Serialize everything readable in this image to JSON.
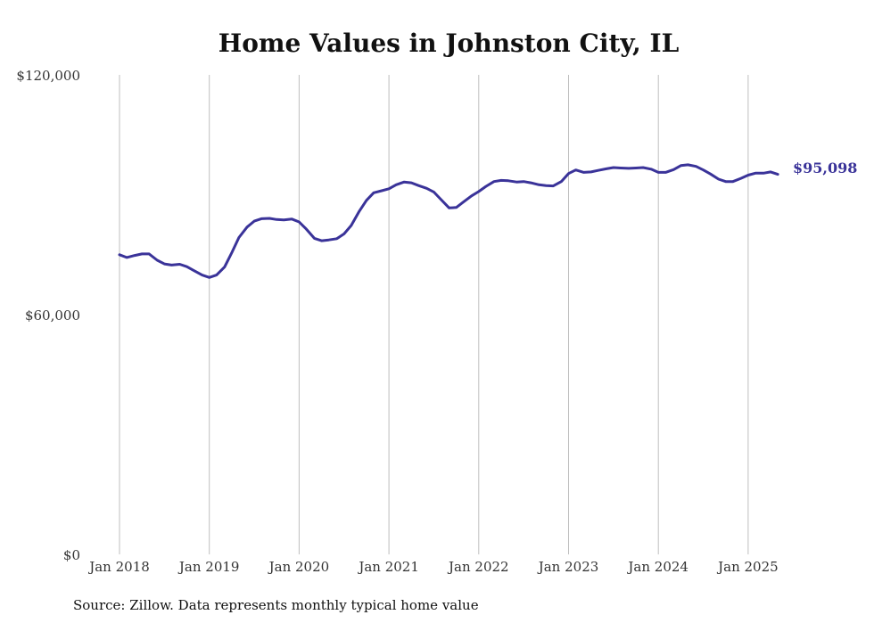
{
  "chart_data": {
    "type": "line",
    "title": "Home Values in Johnston City, IL",
    "xlabel": "",
    "ylabel": "",
    "ylim": [
      0,
      120000
    ],
    "y_ticks": [
      0,
      60000,
      120000
    ],
    "y_tick_labels": [
      "$0",
      "$60,000",
      "$120,000"
    ],
    "x_tick_labels": [
      "Jan 2018",
      "Jan 2019",
      "Jan 2020",
      "Jan 2021",
      "Jan 2022",
      "Jan 2023",
      "Jan 2024",
      "Jan 2025"
    ],
    "grid": "vertical",
    "end_label": "$95,098",
    "source": "Source: Zillow. Data represents monthly typical home value",
    "colors": {
      "series": "#3a3399"
    },
    "series": [
      {
        "values": [
          [
            2018.0,
            75000
          ],
          [
            2018.08,
            74300
          ],
          [
            2018.17,
            74800
          ],
          [
            2018.25,
            75200
          ],
          [
            2018.33,
            75200
          ],
          [
            2018.42,
            73600
          ],
          [
            2018.5,
            72700
          ],
          [
            2018.58,
            72400
          ],
          [
            2018.67,
            72600
          ],
          [
            2018.75,
            72000
          ],
          [
            2018.83,
            71000
          ],
          [
            2018.92,
            69900
          ],
          [
            2019.0,
            69300
          ],
          [
            2019.08,
            69900
          ],
          [
            2019.17,
            71900
          ],
          [
            2019.25,
            75500
          ],
          [
            2019.33,
            79300
          ],
          [
            2019.42,
            81900
          ],
          [
            2019.5,
            83400
          ],
          [
            2019.58,
            84000
          ],
          [
            2019.67,
            84100
          ],
          [
            2019.75,
            83800
          ],
          [
            2019.83,
            83700
          ],
          [
            2019.92,
            83900
          ],
          [
            2020.0,
            83200
          ],
          [
            2020.08,
            81400
          ],
          [
            2020.17,
            79100
          ],
          [
            2020.25,
            78500
          ],
          [
            2020.33,
            78700
          ],
          [
            2020.42,
            79000
          ],
          [
            2020.5,
            80200
          ],
          [
            2020.58,
            82300
          ],
          [
            2020.67,
            85900
          ],
          [
            2020.75,
            88600
          ],
          [
            2020.83,
            90500
          ],
          [
            2020.92,
            91000
          ],
          [
            2021.0,
            91500
          ],
          [
            2021.08,
            92500
          ],
          [
            2021.17,
            93200
          ],
          [
            2021.25,
            93000
          ],
          [
            2021.33,
            92300
          ],
          [
            2021.42,
            91600
          ],
          [
            2021.5,
            90700
          ],
          [
            2021.58,
            88800
          ],
          [
            2021.67,
            86700
          ],
          [
            2021.75,
            86800
          ],
          [
            2021.83,
            88200
          ],
          [
            2021.92,
            89700
          ],
          [
            2022.0,
            90800
          ],
          [
            2022.08,
            92100
          ],
          [
            2022.17,
            93300
          ],
          [
            2022.25,
            93600
          ],
          [
            2022.33,
            93500
          ],
          [
            2022.42,
            93200
          ],
          [
            2022.5,
            93300
          ],
          [
            2022.58,
            93000
          ],
          [
            2022.67,
            92500
          ],
          [
            2022.75,
            92300
          ],
          [
            2022.83,
            92200
          ],
          [
            2022.92,
            93300
          ],
          [
            2023.0,
            95300
          ],
          [
            2023.08,
            96200
          ],
          [
            2023.17,
            95600
          ],
          [
            2023.25,
            95700
          ],
          [
            2023.33,
            96100
          ],
          [
            2023.42,
            96500
          ],
          [
            2023.5,
            96800
          ],
          [
            2023.58,
            96700
          ],
          [
            2023.67,
            96600
          ],
          [
            2023.75,
            96700
          ],
          [
            2023.83,
            96800
          ],
          [
            2023.92,
            96400
          ],
          [
            2024.0,
            95600
          ],
          [
            2024.08,
            95600
          ],
          [
            2024.17,
            96300
          ],
          [
            2024.25,
            97300
          ],
          [
            2024.33,
            97500
          ],
          [
            2024.42,
            97100
          ],
          [
            2024.5,
            96200
          ],
          [
            2024.58,
            95200
          ],
          [
            2024.67,
            93900
          ],
          [
            2024.75,
            93300
          ],
          [
            2024.83,
            93300
          ],
          [
            2024.92,
            94100
          ],
          [
            2025.0,
            94900
          ],
          [
            2025.08,
            95400
          ],
          [
            2025.17,
            95400
          ],
          [
            2025.25,
            95700
          ],
          [
            2025.33,
            95098
          ]
        ]
      }
    ]
  }
}
